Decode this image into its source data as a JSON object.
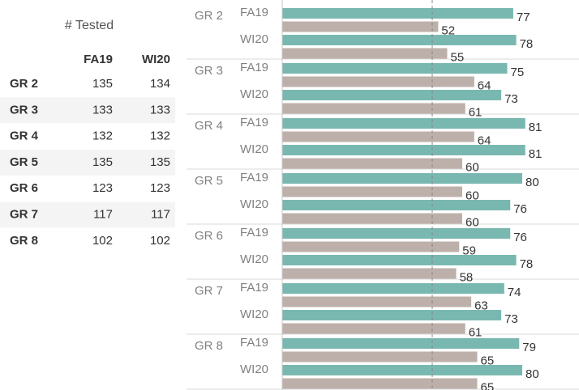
{
  "table": {
    "title": "# Tested",
    "columns": [
      "FA19",
      "WI20"
    ],
    "rows": [
      [
        "GR 2",
        135,
        134
      ],
      [
        "GR 3",
        133,
        133
      ],
      [
        "GR 4",
        132,
        132
      ],
      [
        "GR 5",
        135,
        135
      ],
      [
        "GR 6",
        123,
        123
      ],
      [
        "GR 7",
        117,
        117
      ],
      [
        "GR 8",
        102,
        102
      ]
    ]
  },
  "chart_data": {
    "type": "bar",
    "orientation": "horizontal",
    "groups": [
      "GR 2",
      "GR 3",
      "GR 4",
      "GR 5",
      "GR 6",
      "GR 7",
      "GR 8"
    ],
    "subgroups": [
      "FA19",
      "WI20"
    ],
    "series": [
      {
        "color": "#79b8b0",
        "values": [
          77,
          78,
          75,
          73,
          81,
          81,
          80,
          76,
          76,
          78,
          74,
          73,
          79,
          80
        ]
      },
      {
        "color": "#bdb0aa",
        "values": [
          52,
          55,
          64,
          61,
          64,
          60,
          60,
          60,
          59,
          58,
          63,
          61,
          65,
          65
        ]
      }
    ],
    "xlim": [
      0,
      98
    ],
    "reference_line": 50
  }
}
